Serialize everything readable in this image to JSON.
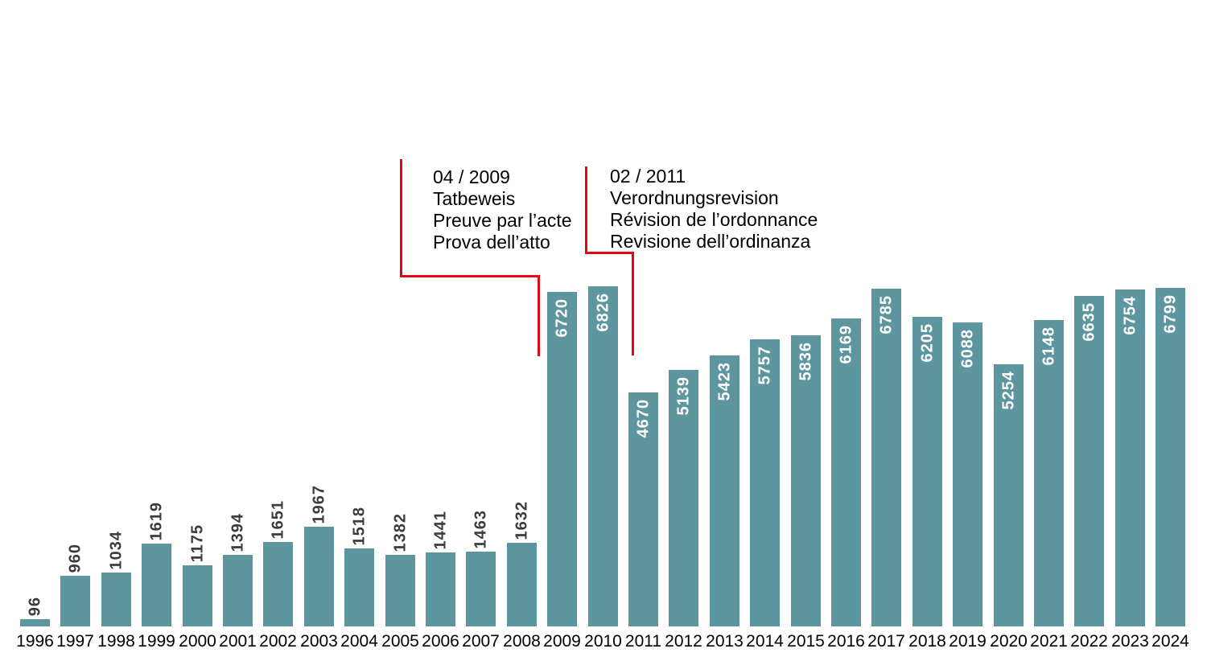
{
  "chart_data": {
    "type": "bar",
    "title": "",
    "xlabel": "",
    "ylabel": "",
    "ylim": [
      0,
      7000
    ],
    "grid": false,
    "legend": null,
    "categories": [
      "1996",
      "1997",
      "1998",
      "1999",
      "2000",
      "2001",
      "2002",
      "2003",
      "2004",
      "2005",
      "2006",
      "2007",
      "2008",
      "2009",
      "2010",
      "2011",
      "2012",
      "2013",
      "2014",
      "2015",
      "2016",
      "2017",
      "2018",
      "2019",
      "2020",
      "2021",
      "2022",
      "2023",
      "2024"
    ],
    "values": [
      96,
      960,
      1034,
      1619,
      1175,
      1394,
      1651,
      1967,
      1518,
      1382,
      1441,
      1463,
      1632,
      6720,
      6826,
      4670,
      5139,
      5423,
      5757,
      5836,
      6169,
      6785,
      6205,
      6088,
      5254,
      6148,
      6635,
      6754,
      6799
    ],
    "annotations": [
      {
        "id": "04-2009",
        "lines": [
          "04 / 2009",
          "Tatbeweis",
          "Preuve par l’acte",
          "Prova dell’atto"
        ]
      },
      {
        "id": "02-2011",
        "lines": [
          "02 / 2011",
          "Verordnungsrevision",
          "Révision de l’ordonnance",
          "Revisione dell’ordinanza"
        ]
      }
    ]
  },
  "colors": {
    "background": "#ffffff",
    "bar": "#5e96a0",
    "value_label_dark": "#3c3c3b",
    "value_label_light": "#ffffff",
    "axis_label": "#000000",
    "annotation_text": "#000000",
    "annotation_line": "#e30613"
  }
}
